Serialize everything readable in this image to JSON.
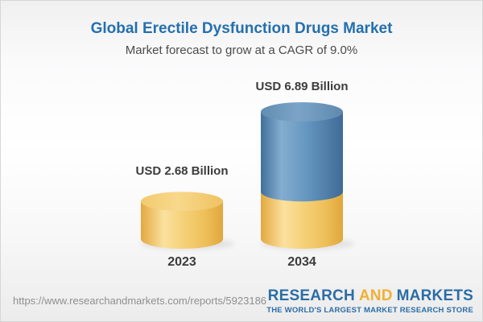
{
  "header": {
    "title": "Global Erectile Dysfunction Drugs Market",
    "subtitle": "Market forecast to grow at a CAGR of 9.0%"
  },
  "chart_data": {
    "type": "bar",
    "categories": [
      "2023",
      "2034"
    ],
    "values": [
      2.68,
      6.89
    ],
    "unit": "USD Billion",
    "value_labels": [
      "USD 2.68 Billion",
      "USD 6.89 Billion"
    ],
    "title": "Global Erectile Dysfunction Drugs Market",
    "subtitle": "Market forecast to grow at a CAGR of 9.0%",
    "cagr_pct": "9.0%",
    "legend_position": "none",
    "grid": false,
    "ylim": [
      0,
      6.89
    ],
    "bar_style": "3d-cylinder",
    "colors": {
      "base_segment_gold": "#f2c766",
      "growth_segment_blue": "#6697c0"
    }
  },
  "footer": {
    "url": "https://www.researchandmarkets.com/reports/5923186",
    "logo": {
      "research": "RESEARCH",
      "and": "AND",
      "markets": "MARKETS",
      "tagline": "THE WORLD'S LARGEST MARKET RESEARCH STORE"
    }
  }
}
